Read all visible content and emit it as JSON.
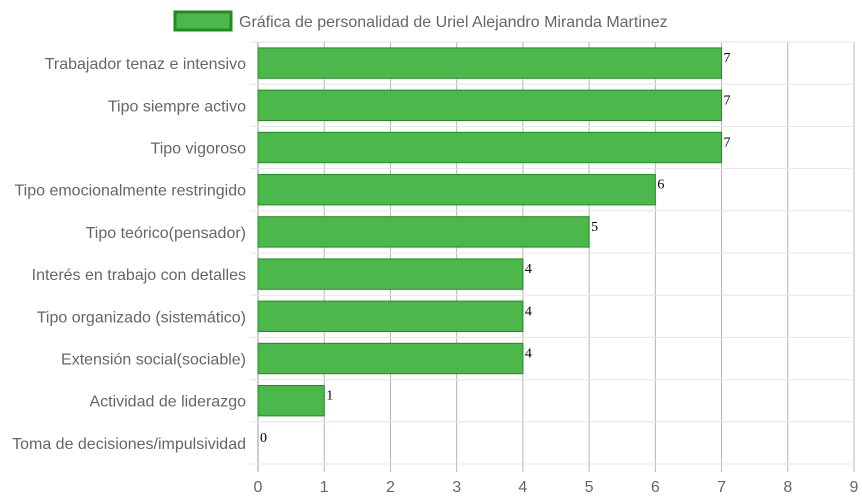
{
  "chart_data": {
    "type": "bar",
    "orientation": "horizontal",
    "categories": [
      "Trabajador tenaz e intensivo",
      "Tipo siempre activo",
      "Tipo vigoroso",
      "Tipo emocionalmente restringido",
      "Tipo teórico(pensador)",
      "Interés en trabajo con detalles",
      "Tipo organizado (sistemático)",
      "Extensión social(sociable)",
      "Actividad de liderazgo",
      "Toma de decisiones/impulsividad"
    ],
    "series": [
      {
        "name": "Gráfica de personalidad de Uriel Alejandro Miranda Martinez",
        "values": [
          7,
          7,
          7,
          6,
          5,
          4,
          4,
          4,
          1,
          0
        ],
        "color": "#4cb84c",
        "border_color": "#228b22"
      }
    ],
    "xlim": [
      0,
      9
    ],
    "x_ticks": [
      "0",
      "1",
      "2",
      "3",
      "4",
      "5",
      "6",
      "7",
      "8",
      "9"
    ],
    "grid": true,
    "legend": "top-center",
    "data_labels": true
  }
}
